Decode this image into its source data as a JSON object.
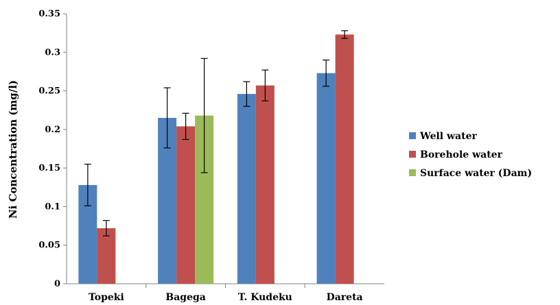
{
  "chart_data": {
    "type": "bar",
    "title": "",
    "xlabel": "",
    "ylabel": "Ni Concentration (mg/l)",
    "ylim": [
      0,
      0.35
    ],
    "yticks": [
      "0",
      "0.05",
      "0.1",
      "0.15",
      "0.2",
      "0.25",
      "0.3",
      "0.35"
    ],
    "categories": [
      "Topeki",
      "Bagega",
      "T. Kudeku",
      "Dareta"
    ],
    "grid": false,
    "legend_position": "right",
    "series": [
      {
        "name": "Well water",
        "color": "#4f81bd",
        "values": [
          0.128,
          0.215,
          0.246,
          0.273
        ],
        "errors": [
          0.027,
          0.039,
          0.016,
          0.017
        ]
      },
      {
        "name": "Borehole water",
        "color": "#c0504d",
        "values": [
          0.072,
          0.204,
          0.257,
          0.323
        ],
        "errors": [
          0.01,
          0.017,
          0.02,
          0.005
        ]
      },
      {
        "name": "Surface water (Dam)",
        "color": "#9bbb59",
        "values": [
          null,
          0.218,
          null,
          null
        ],
        "errors": [
          null,
          0.074,
          null,
          null
        ]
      }
    ]
  }
}
